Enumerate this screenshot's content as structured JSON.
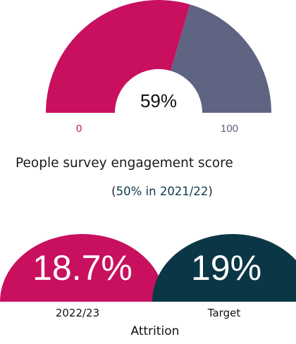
{
  "chart_data": [
    {
      "type": "gauge",
      "value": 59,
      "value_label": "59%",
      "min": 0,
      "max": 100,
      "min_label": "0",
      "max_label": "100",
      "title": "People survey engagement score",
      "subtitle": {
        "open": "(",
        "text": "50% in 2021/22",
        "close": ")"
      },
      "colors": {
        "filled": "#c8105f",
        "remaining": "#5e6482"
      }
    },
    {
      "type": "semicircle-kpi",
      "title": "Attrition",
      "items": [
        {
          "label": "2022/23",
          "value": 18.7,
          "value_label": "18.7%",
          "color": "#c8105f"
        },
        {
          "label": "Target",
          "value": 19,
          "value_label": "19%",
          "color": "#0b3645"
        }
      ]
    }
  ]
}
